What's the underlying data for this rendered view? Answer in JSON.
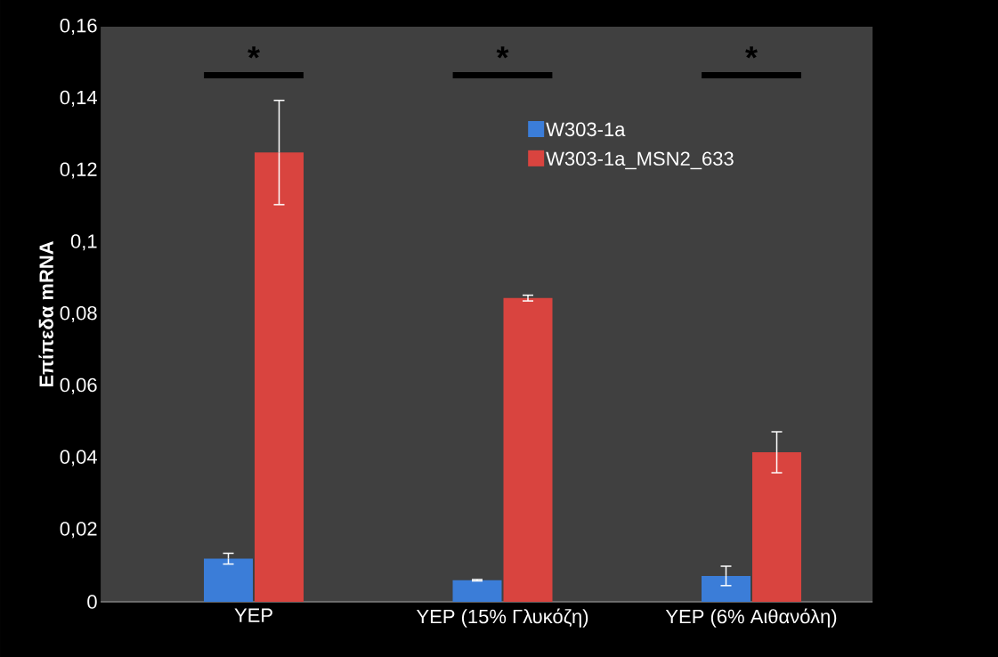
{
  "chart_data": {
    "type": "bar",
    "ylabel": "Επίπεδα mRNA",
    "categories": [
      "YEP",
      "YEP (15% Γλυκόζη)",
      "YEP (6% Αιθανόλη)"
    ],
    "series": [
      {
        "name": "W303-1a",
        "color": "#3b7dd8",
        "values": [
          0.012,
          0.006,
          0.0072
        ],
        "errors": [
          0.0015,
          0.0002,
          0.0027
        ]
      },
      {
        "name": "W303-1a_MSN2_633",
        "color": "#d9443f",
        "values": [
          0.125,
          0.0845,
          0.0416
        ],
        "errors": [
          0.0145,
          0.0008,
          0.0057
        ]
      }
    ],
    "ylim": [
      0,
      0.16
    ],
    "yticks": [
      0,
      {
        "value": 0.02,
        "label": "0,02"
      },
      {
        "value": 0.04,
        "label": "0,04"
      },
      {
        "value": 0.06,
        "label": "0,06"
      },
      {
        "value": 0.08,
        "label": "0,08"
      },
      {
        "value": 0.1,
        "label": "0,1"
      },
      {
        "value": 0.12,
        "label": "0,12"
      },
      {
        "value": 0.14,
        "label": "0,14"
      },
      {
        "value": 0.16,
        "label": "0,16"
      }
    ],
    "annotations": [
      "*",
      "*",
      "*"
    ],
    "grid": false,
    "legend": "top right"
  }
}
